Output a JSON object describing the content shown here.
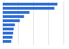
{
  "chart_data": {
    "type": "bar",
    "orientation": "horizontal",
    "categories": [
      null,
      null,
      null,
      null,
      null,
      null,
      null,
      null,
      null,
      null
    ],
    "values": [
      90,
      85,
      44,
      35,
      28,
      20,
      18,
      17,
      16,
      14
    ],
    "color": "#2f6fd6",
    "xlim": [
      0,
      100
    ],
    "xticks": [
      0,
      25,
      50,
      75,
      100
    ],
    "grid": true,
    "tick_labels": false
  }
}
